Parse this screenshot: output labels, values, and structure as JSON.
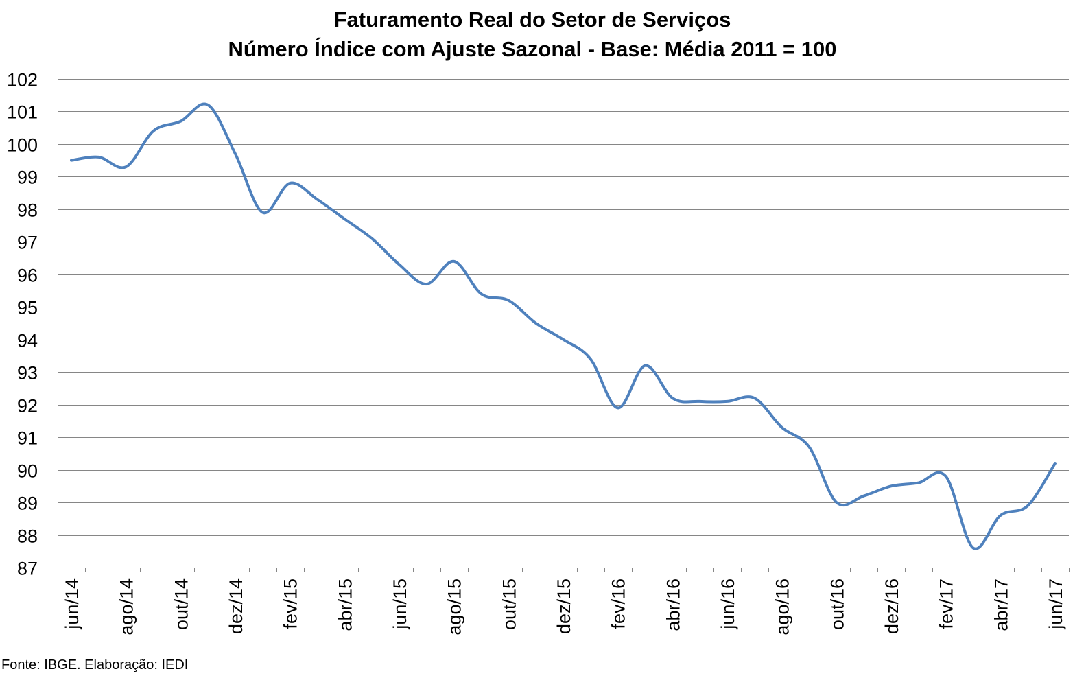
{
  "chart_data": {
    "type": "line",
    "title": "Faturamento Real do Setor de Serviços",
    "subtitle": "Número Índice com Ajuste Sazonal - Base: Média 2011 = 100",
    "xlabel": "",
    "ylabel": "",
    "ylim": [
      87,
      102
    ],
    "yticks": [
      "87",
      "88",
      "89",
      "90",
      "91",
      "92",
      "93",
      "94",
      "95",
      "96",
      "97",
      "98",
      "99",
      "100",
      "101",
      "102"
    ],
    "xtick_labels": [
      "jun/14",
      "ago/14",
      "out/14",
      "dez/14",
      "fev/15",
      "abr/15",
      "jun/15",
      "ago/15",
      "out/15",
      "dez/15",
      "fev/16",
      "abr/16",
      "jun/16",
      "ago/16",
      "out/16",
      "dez/16",
      "fev/17",
      "abr/17",
      "jun/17"
    ],
    "categories": [
      "jun/14",
      "jul/14",
      "ago/14",
      "set/14",
      "out/14",
      "nov/14",
      "dez/14",
      "jan/15",
      "fev/15",
      "mar/15",
      "abr/15",
      "mai/15",
      "jun/15",
      "jul/15",
      "ago/15",
      "set/15",
      "out/15",
      "nov/15",
      "dez/15",
      "jan/16",
      "fev/16",
      "mar/16",
      "abr/16",
      "mai/16",
      "jun/16",
      "jul/16",
      "ago/16",
      "set/16",
      "out/16",
      "nov/16",
      "dez/16",
      "jan/17",
      "fev/17",
      "mar/17",
      "abr/17",
      "mai/17",
      "jun/17"
    ],
    "series": [
      {
        "values": [
          99.5,
          99.6,
          99.3,
          100.4,
          100.7,
          101.2,
          99.7,
          97.9,
          98.8,
          98.3,
          97.7,
          97.1,
          96.3,
          95.7,
          96.4,
          95.4,
          95.2,
          94.5,
          94.0,
          93.4,
          91.9,
          93.2,
          92.2,
          92.1,
          92.1,
          92.2,
          91.3,
          90.7,
          89.0,
          89.2,
          89.5,
          89.6,
          89.8,
          87.6,
          88.6,
          88.9,
          90.2
        ]
      }
    ],
    "line_color": "#4f81bd",
    "gridlines": true,
    "legend": "none"
  },
  "source": "Fonte: IBGE. Elaboração: IEDI"
}
